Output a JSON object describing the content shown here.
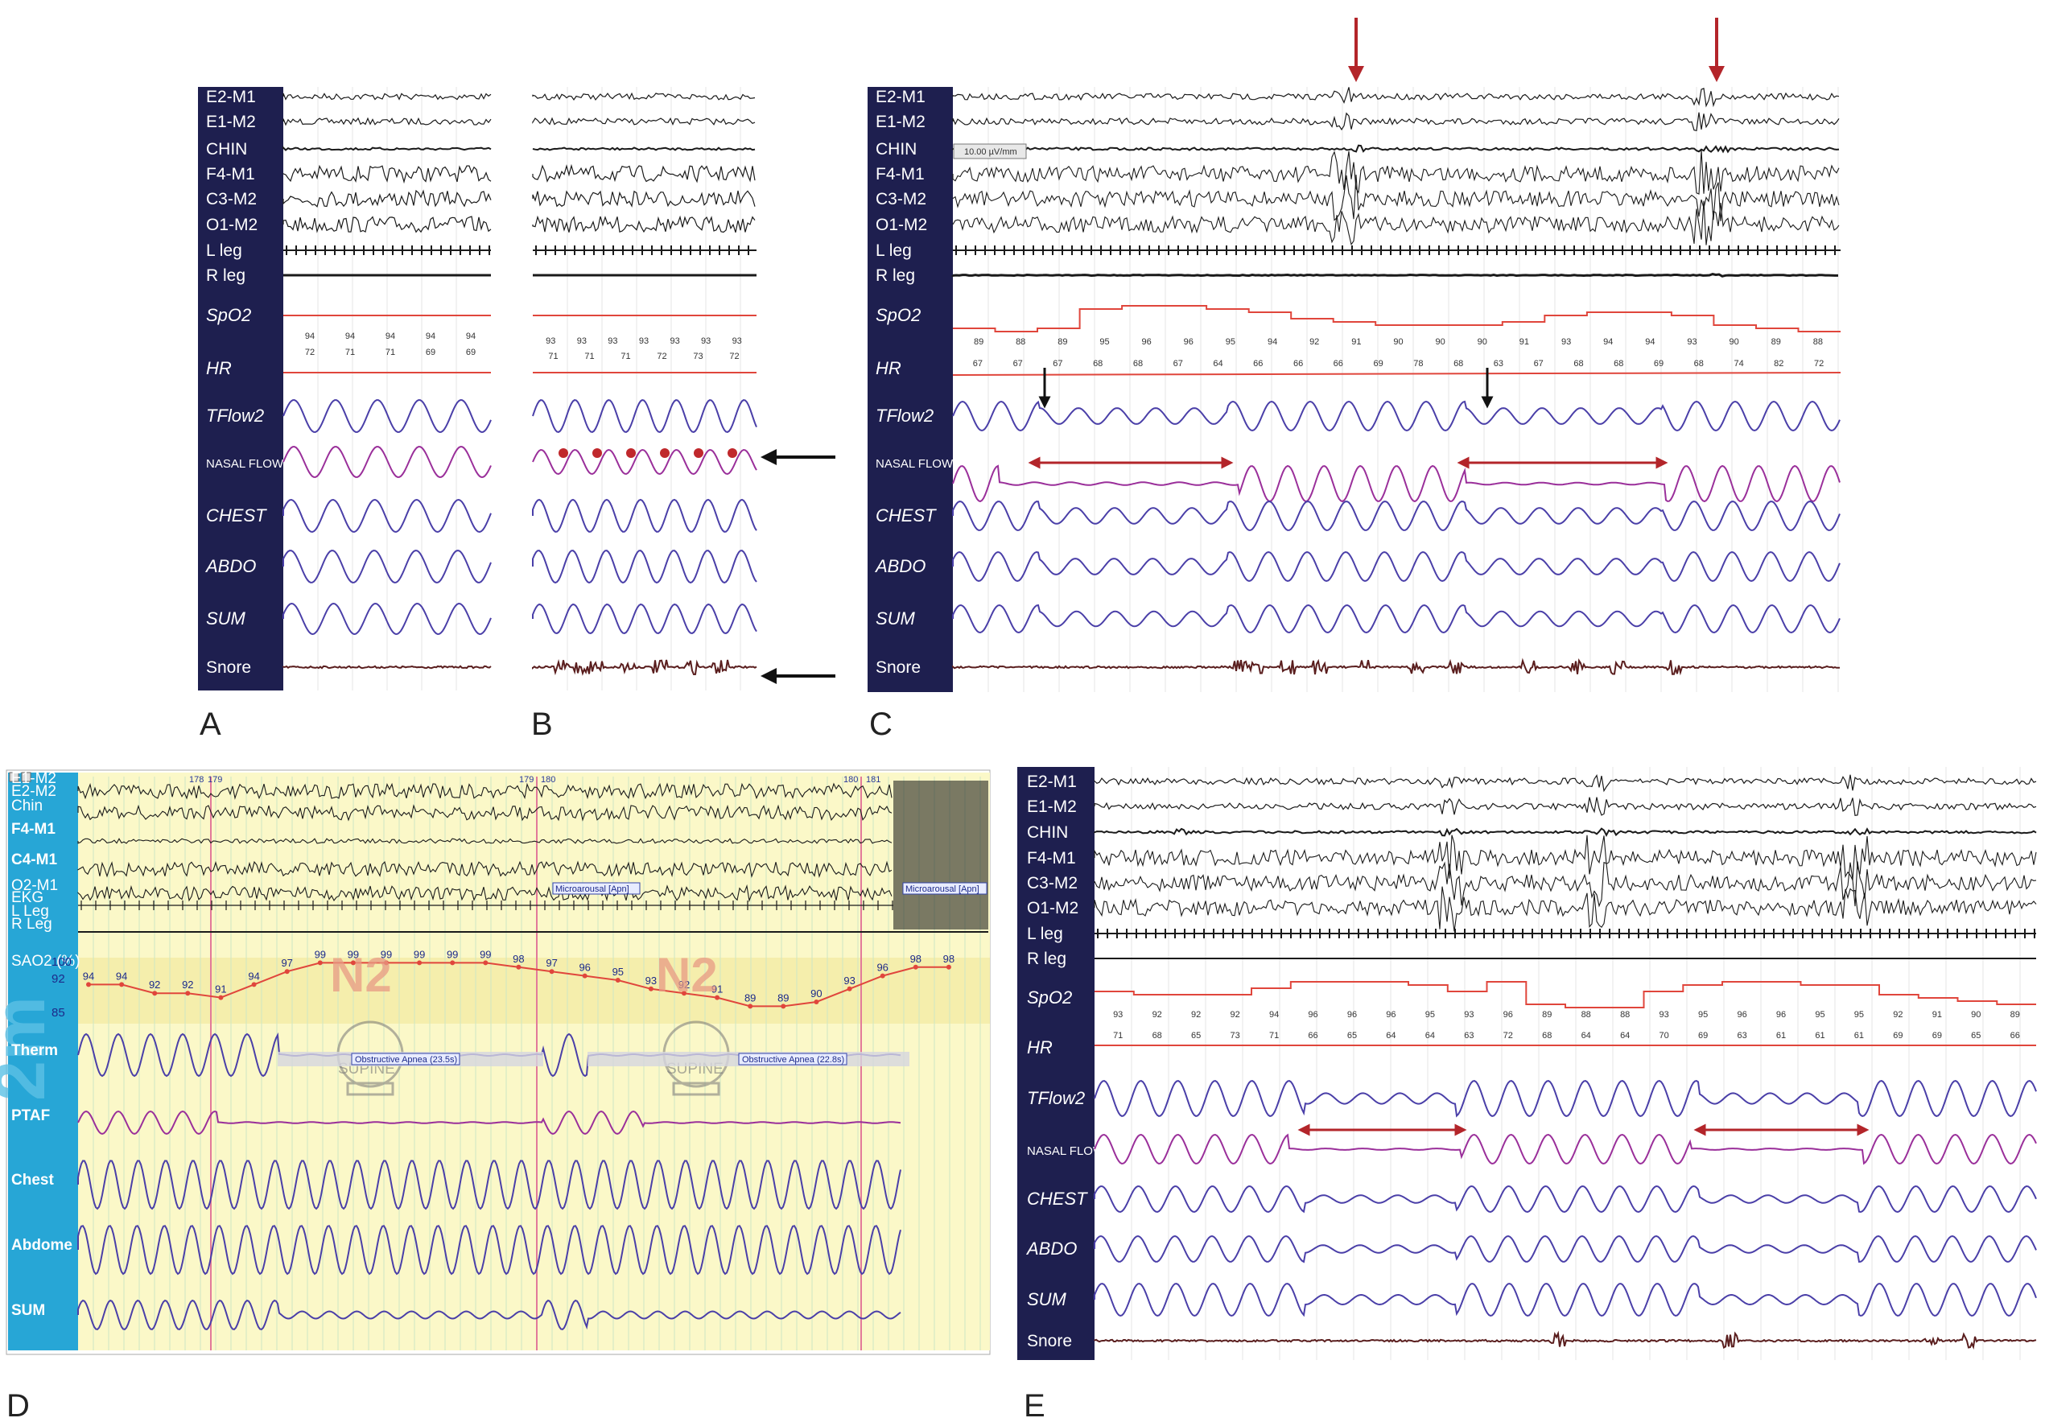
{
  "chart_data": [
    {
      "type": "line",
      "panel": "A",
      "channels": [
        "E2-M1",
        "E1-M2",
        "CHIN",
        "F4-M1",
        "C3-M2",
        "O1-M2",
        "L leg",
        "R leg",
        "SpO2",
        "HR",
        "TFlow2",
        "NASAL FLOW",
        "CHEST",
        "ABDO",
        "SUM",
        "Snore"
      ],
      "spo2_values": [
        "94",
        "94",
        "94",
        "94",
        "94"
      ],
      "hr_values": [
        "72",
        "71",
        "71",
        "69",
        "69"
      ]
    },
    {
      "type": "line",
      "panel": "B",
      "spo2_values": [
        "93",
        "93",
        "93",
        "93",
        "93",
        "93",
        "93"
      ],
      "hr_values": [
        "71",
        "71",
        "71",
        "72",
        "73",
        "72"
      ]
    },
    {
      "type": "line",
      "panel": "C",
      "channels": [
        "E2-M1",
        "E1-M2",
        "CHIN",
        "F4-M1",
        "C3-M2",
        "O1-M2",
        "L leg",
        "R leg",
        "SpO2",
        "HR",
        "TFlow2",
        "NASAL FLOW",
        "CHEST",
        "ABDO",
        "SUM",
        "Snore"
      ],
      "scale_label": "10.00 µV/mm",
      "spo2_values": [
        "89",
        "88",
        "89",
        "95",
        "96",
        "96",
        "95",
        "94",
        "92",
        "91",
        "90",
        "90",
        "90",
        "91",
        "93",
        "94",
        "94",
        "93",
        "90",
        "89",
        "88"
      ],
      "hr_values": [
        "67",
        "67",
        "67",
        "68",
        "68",
        "67",
        "64",
        "66",
        "66",
        "66",
        "69",
        "78",
        "68",
        "63",
        "67",
        "68",
        "68",
        "69",
        "68",
        "74",
        "82",
        "72"
      ]
    },
    {
      "type": "line",
      "panel": "D",
      "channels": [
        "E1-M2",
        "E2-M2",
        "Chin",
        "F4-M1",
        "C4-M1",
        "O2-M1",
        "EKG",
        "L Leg",
        "R Leg",
        "SAO2 (%)",
        "Therm",
        "PTAF",
        "Chest",
        "Abdome",
        "SUM"
      ],
      "side_text": "2m",
      "sao2_axis": [
        "100",
        "92",
        "85"
      ],
      "sao2_values": [
        "94",
        "94",
        "92",
        "92",
        "91",
        "94",
        "97",
        "99",
        "99",
        "99",
        "99",
        "99",
        "99",
        "98",
        "97",
        "96",
        "95",
        "93",
        "92",
        "91",
        "89",
        "89",
        "90",
        "93",
        "96",
        "98",
        "98"
      ],
      "epoch_markers": [
        "178",
        "179",
        "179",
        "180",
        "180",
        "181"
      ],
      "stage_labels": [
        "N2",
        "N2"
      ],
      "position_labels": [
        "SUPINE",
        "SUPINE"
      ],
      "annotations": [
        "Microarousal [Apn]",
        "Microarousal [Apn]",
        "Obstructive Apnea (23.5s)",
        "Obstructive Apnea (22.8s)"
      ]
    },
    {
      "type": "line",
      "panel": "E",
      "channels": [
        "E2-M1",
        "E1-M2",
        "CHIN",
        "F4-M1",
        "C3-M2",
        "O1-M2",
        "L leg",
        "R leg",
        "SpO2",
        "HR",
        "TFlow2",
        "NASAL FLOW",
        "CHEST",
        "ABDO",
        "SUM",
        "Snore"
      ],
      "spo2_values": [
        "93",
        "92",
        "92",
        "92",
        "94",
        "96",
        "96",
        "96",
        "95",
        "93",
        "96",
        "89",
        "88",
        "88",
        "93",
        "95",
        "96",
        "96",
        "95",
        "95",
        "92",
        "91",
        "90",
        "89"
      ],
      "hr_values": [
        "71",
        "68",
        "65",
        "73",
        "71",
        "66",
        "65",
        "64",
        "64",
        "63",
        "72",
        "68",
        "64",
        "64",
        "70",
        "69",
        "63",
        "61",
        "61",
        "61",
        "69",
        "69",
        "65",
        "66"
      ]
    }
  ],
  "panel_labels": {
    "A": "A",
    "B": "B",
    "C": "C",
    "D": "D",
    "E": "E"
  },
  "colors": {
    "sidebar_dark": "#1e1f4f",
    "sidebar_blue": "#27a6d6",
    "eeg": "#1a1a1a",
    "spo2": "#e0463c",
    "resp": "#4a3fa8",
    "nasal": "#9a2f9a",
    "arrow_red": "#b3252a",
    "snore": "#5a1e1e",
    "bg_yellow": "#fbf8c8"
  }
}
